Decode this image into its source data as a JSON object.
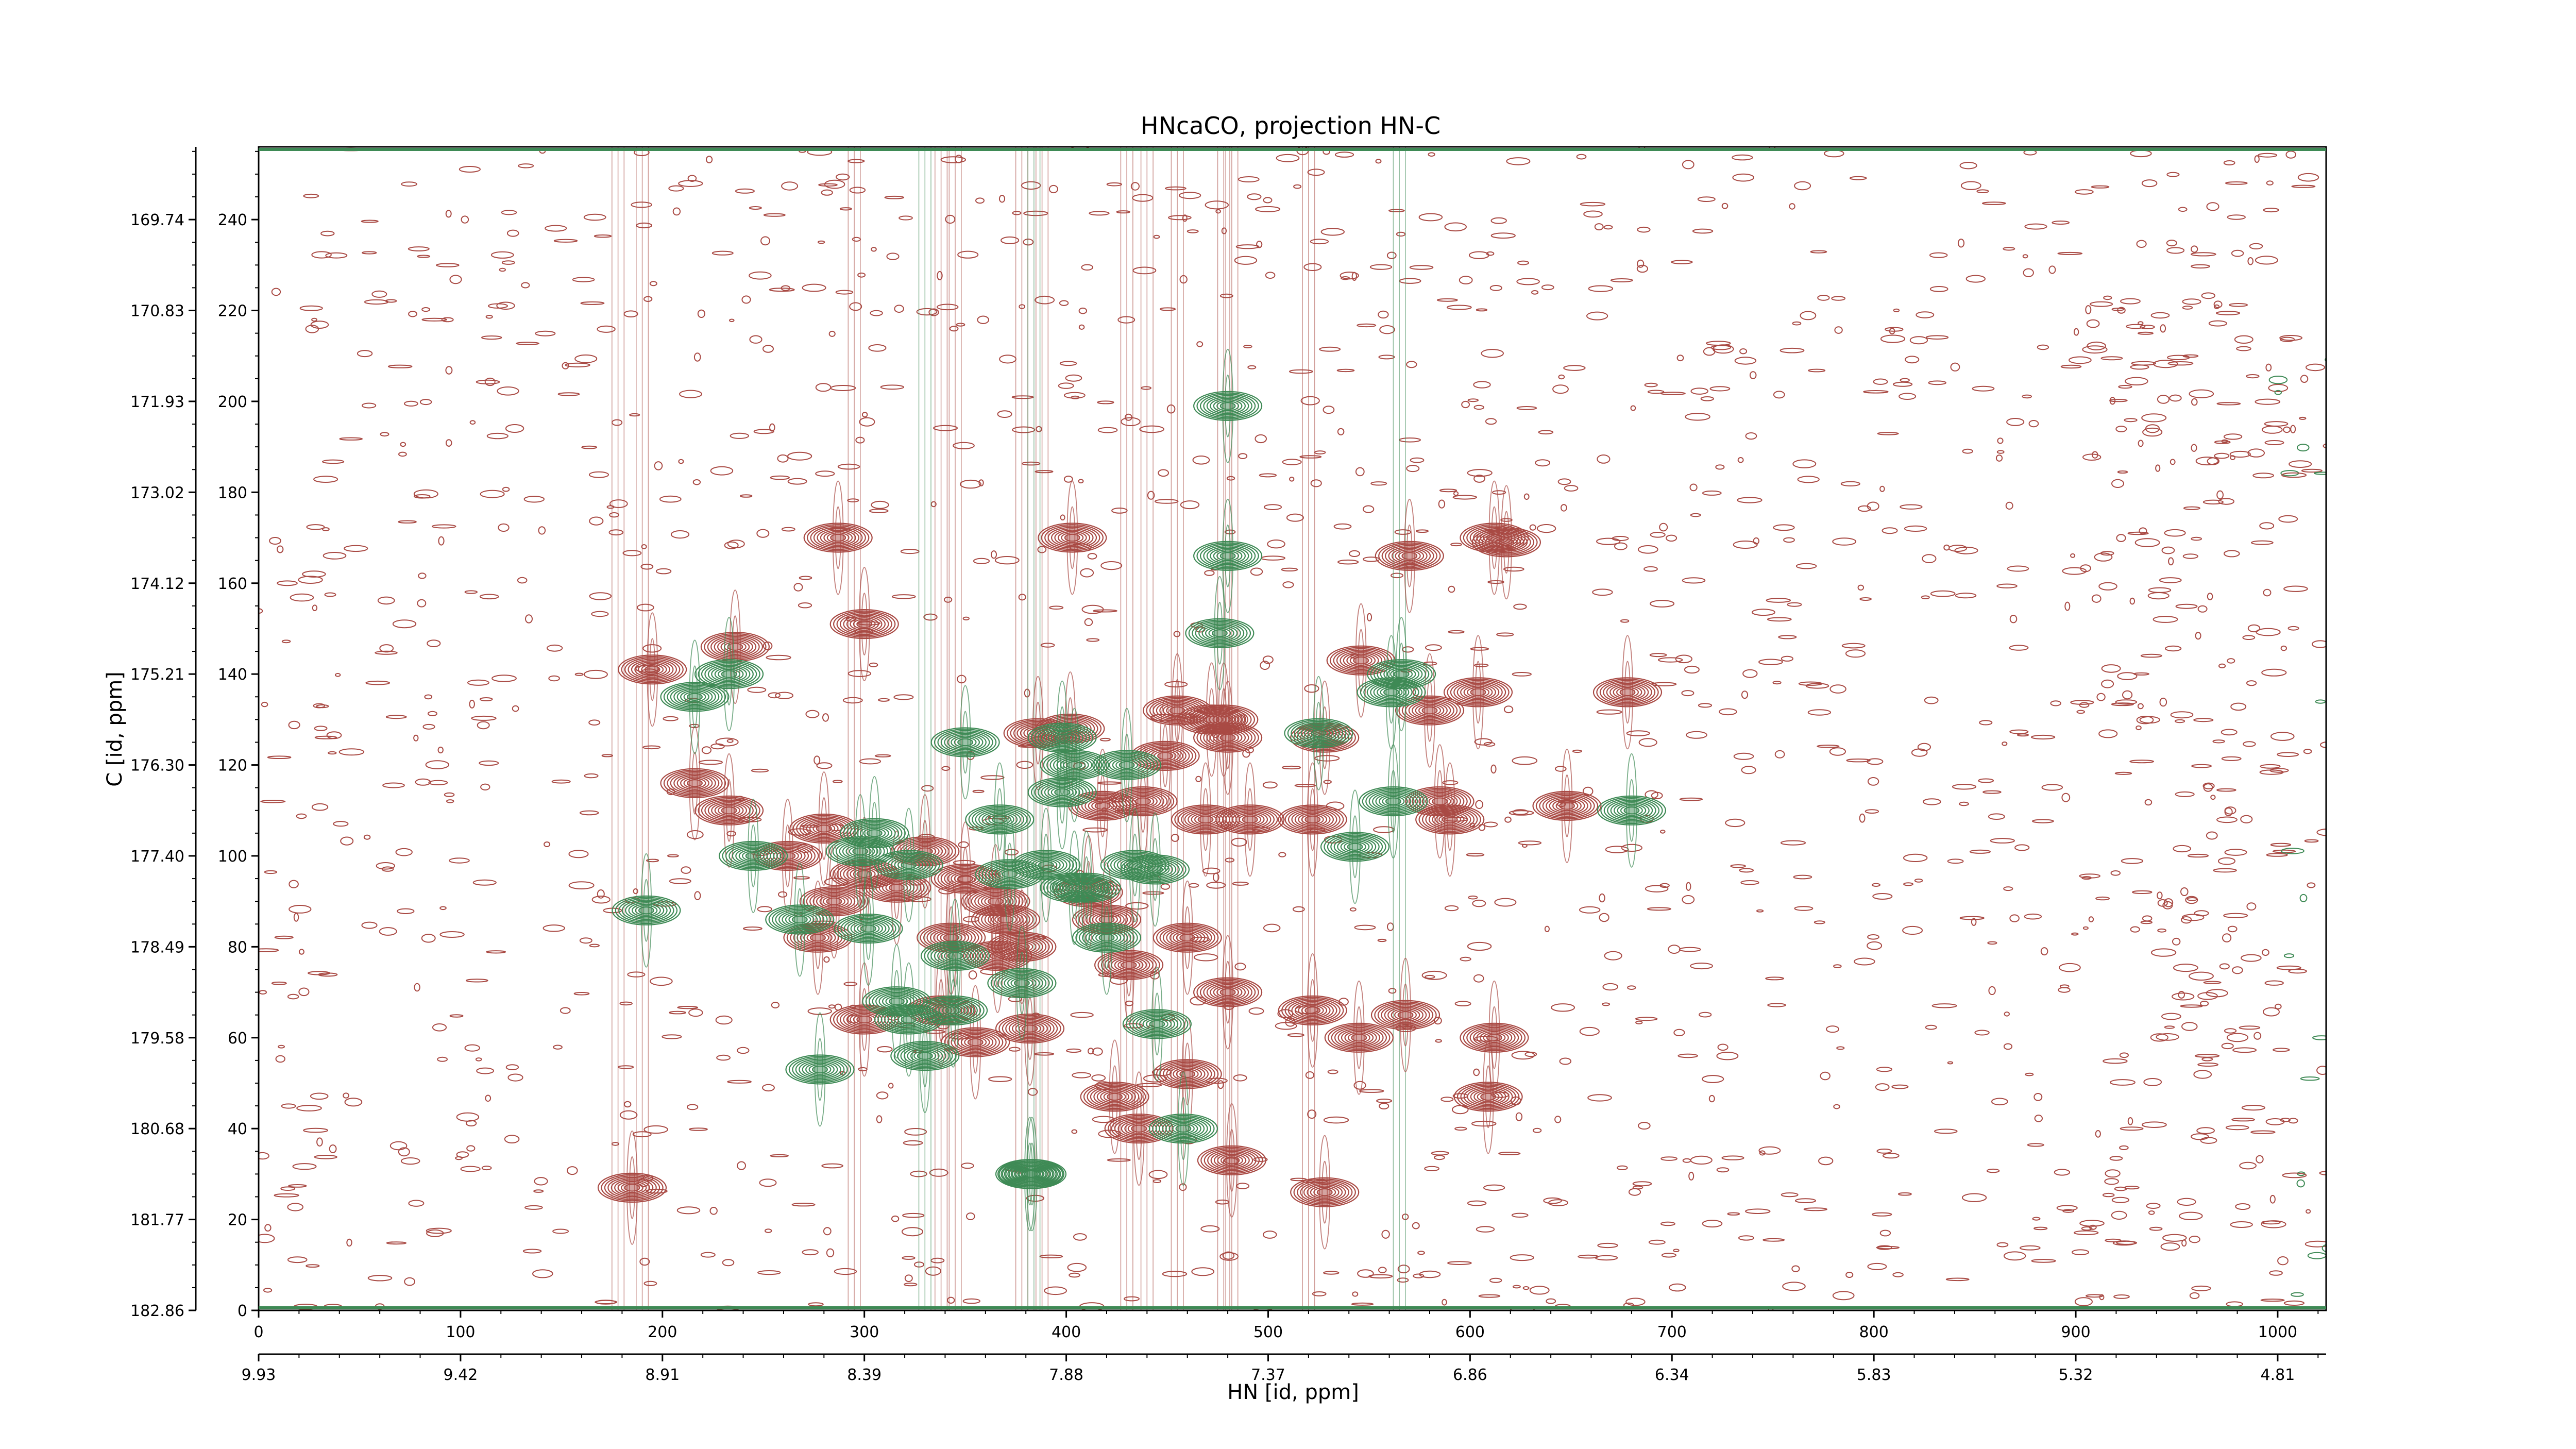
{
  "chart_data": {
    "type": "contour",
    "title": "HNcaCO, projection HN-C",
    "xlabel": "HN [id, ppm]",
    "ylabel": "C [id, ppm]",
    "xlim": [
      0,
      1024
    ],
    "ylim": [
      0,
      256
    ],
    "x_ticks_points": [
      0,
      100,
      200,
      300,
      400,
      500,
      600,
      700,
      800,
      900,
      1000
    ],
    "x_ticks_ppm": [
      "9.93",
      "9.42",
      "8.91",
      "8.39",
      "7.88",
      "7.37",
      "6.86",
      "6.34",
      "5.83",
      "5.32",
      "4.81"
    ],
    "y_ticks_points": [
      0,
      20,
      40,
      60,
      80,
      100,
      120,
      140,
      160,
      180,
      200,
      220,
      240
    ],
    "y_ticks_ppm": [
      "182.86",
      "181.77",
      "180.68",
      "179.58",
      "178.49",
      "177.40",
      "176.30",
      "175.21",
      "174.12",
      "173.02",
      "171.93",
      "170.83",
      "169.74"
    ],
    "series": [
      {
        "color": "#a94a44",
        "peaks": [
          [
            185,
            27
          ],
          [
            216,
            116
          ],
          [
            233,
            110
          ],
          [
            195,
            141
          ],
          [
            236,
            146
          ],
          [
            287,
            170
          ],
          [
            300,
            151
          ],
          [
            262,
            100
          ],
          [
            280,
            106
          ],
          [
            300,
            96
          ],
          [
            285,
            90
          ],
          [
            277,
            82
          ],
          [
            300,
            64
          ],
          [
            316,
            93
          ],
          [
            330,
            101
          ],
          [
            343,
            82
          ],
          [
            350,
            95
          ],
          [
            355,
            59
          ],
          [
            338,
            66
          ],
          [
            365,
            90
          ],
          [
            366,
            78
          ],
          [
            370,
            86
          ],
          [
            378,
            80
          ],
          [
            382,
            62
          ],
          [
            386,
            127
          ],
          [
            402,
            128
          ],
          [
            403,
            170
          ],
          [
            411,
            92
          ],
          [
            420,
            86
          ],
          [
            424,
            47
          ],
          [
            436,
            40
          ],
          [
            431,
            76
          ],
          [
            449,
            122
          ],
          [
            460,
            52
          ],
          [
            460,
            82
          ],
          [
            469,
            108
          ],
          [
            472,
            130
          ],
          [
            478,
            130
          ],
          [
            480,
            126
          ],
          [
            480,
            70
          ],
          [
            482,
            33
          ],
          [
            491,
            108
          ],
          [
            522,
            108
          ],
          [
            522,
            66
          ],
          [
            528,
            126
          ],
          [
            528,
            26
          ],
          [
            545,
            60
          ],
          [
            546,
            143
          ],
          [
            568,
            65
          ],
          [
            570,
            166
          ],
          [
            580,
            132
          ],
          [
            585,
            112
          ],
          [
            590,
            108
          ],
          [
            604,
            136
          ],
          [
            609,
            47
          ],
          [
            612,
            60
          ],
          [
            618,
            169
          ],
          [
            648,
            111
          ],
          [
            678,
            136
          ],
          [
            612,
            170
          ],
          [
            418,
            111
          ],
          [
            455,
            132
          ],
          [
            438,
            112
          ]
        ]
      },
      {
        "color": "#3e8a55",
        "peaks": [
          [
            192,
            88
          ],
          [
            216,
            135
          ],
          [
            233,
            140
          ],
          [
            245,
            100
          ],
          [
            268,
            86
          ],
          [
            278,
            53
          ],
          [
            298,
            101
          ],
          [
            302,
            84
          ],
          [
            305,
            105
          ],
          [
            316,
            68
          ],
          [
            322,
            98
          ],
          [
            322,
            64
          ],
          [
            330,
            56
          ],
          [
            344,
            66
          ],
          [
            345,
            78
          ],
          [
            350,
            125
          ],
          [
            367,
            108
          ],
          [
            372,
            96
          ],
          [
            378,
            72
          ],
          [
            390,
            98
          ],
          [
            398,
            114
          ],
          [
            398,
            126
          ],
          [
            404,
            120
          ],
          [
            404,
            93
          ],
          [
            410,
            93
          ],
          [
            420,
            82
          ],
          [
            430,
            120
          ],
          [
            434,
            98
          ],
          [
            444,
            97
          ],
          [
            445,
            63
          ],
          [
            458,
            40
          ],
          [
            476,
            149
          ],
          [
            480,
            166
          ],
          [
            480,
            199
          ],
          [
            525,
            127
          ],
          [
            543,
            102
          ],
          [
            562,
            112
          ],
          [
            566,
            140
          ],
          [
            561,
            136
          ],
          [
            680,
            110
          ],
          [
            383,
            30
          ],
          [
            382,
            30
          ]
        ]
      }
    ]
  }
}
